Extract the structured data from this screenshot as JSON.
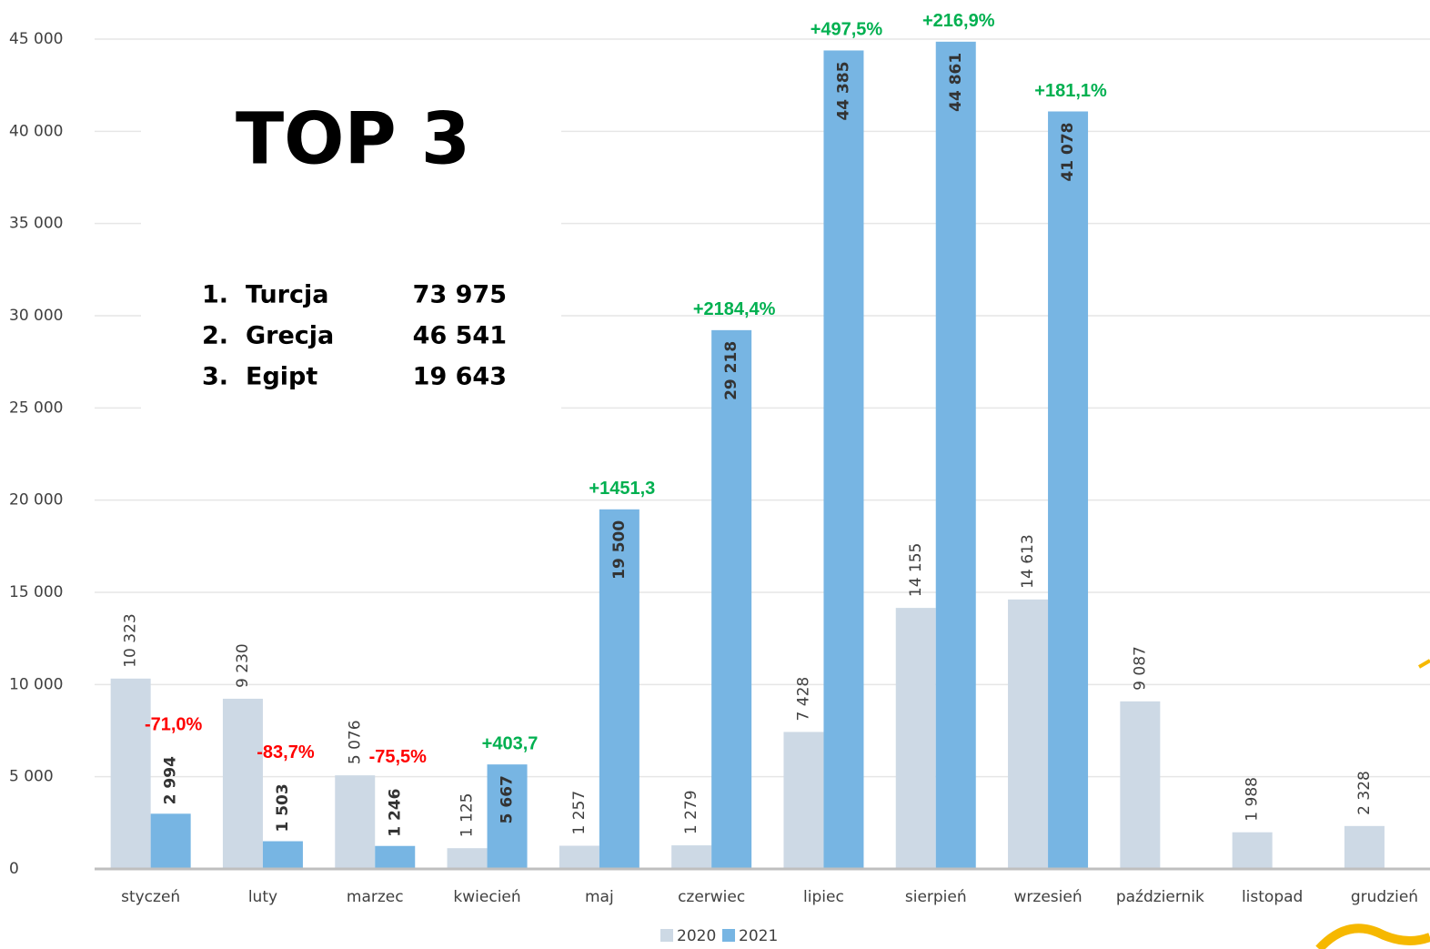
{
  "chart_data": {
    "type": "bar",
    "categories": [
      "styczeń",
      "luty",
      "marzec",
      "kwiecień",
      "maj",
      "czerwiec",
      "lipiec",
      "sierpień",
      "wrzesień",
      "październik",
      "listopad",
      "grudzień"
    ],
    "series": [
      {
        "name": "2020",
        "color": "#cdd9e5",
        "values": [
          10323,
          9230,
          5076,
          1125,
          1257,
          1279,
          7428,
          14155,
          14613,
          9087,
          1988,
          2328
        ],
        "value_labels": [
          "10 323",
          "9 230",
          "5 076",
          "1 125",
          "1 257",
          "1 279",
          "7 428",
          "14 155",
          "14 613",
          "9 087",
          "1 988",
          "2 328"
        ]
      },
      {
        "name": "2021",
        "color": "#77b5e3",
        "values": [
          2994,
          1503,
          1246,
          5667,
          19500,
          29218,
          44385,
          44861,
          41078,
          null,
          null,
          null
        ],
        "value_labels": [
          "2 994",
          "1 503",
          "1 246",
          "5 667",
          "19 500",
          "29 218",
          "44 385",
          "44 861",
          "41 078",
          null,
          null,
          null
        ]
      }
    ],
    "change_labels": [
      "-71,0%",
      "-83,7%",
      "-75,5%",
      "+403,7",
      "+1451,3",
      "+2184,4%",
      "+497,5%",
      "+216,9%",
      "+181,1%",
      null,
      null,
      null
    ],
    "ylim": [
      0,
      45000
    ],
    "yticks": [
      0,
      {
        "value": 5000,
        "label": "5 000"
      },
      {
        "value": 10000,
        "label": "10 000"
      },
      {
        "value": 15000,
        "label": "15 000"
      },
      {
        "value": 20000,
        "label": "20 000"
      },
      {
        "value": 25000,
        "label": "25 000"
      },
      {
        "value": 30000,
        "label": "30 000"
      },
      {
        "value": 35000,
        "label": "35 000"
      },
      {
        "value": 40000,
        "label": "40 000"
      },
      {
        "value": 45000,
        "label": "45 000"
      }
    ],
    "grid": true,
    "legend": "bottom"
  },
  "top3": {
    "title": "TOP 3",
    "items": [
      {
        "rank": "1.",
        "name": "Turcja",
        "value": "73 975"
      },
      {
        "rank": "2.",
        "name": "Grecja",
        "value": "46 541"
      },
      {
        "rank": "3.",
        "name": "Egipt",
        "value": "19 643"
      }
    ]
  }
}
